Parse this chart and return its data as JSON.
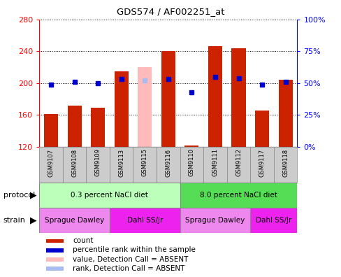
{
  "title": "GDS574 / AF002251_at",
  "samples": [
    "GSM9107",
    "GSM9108",
    "GSM9109",
    "GSM9113",
    "GSM9115",
    "GSM9116",
    "GSM9110",
    "GSM9111",
    "GSM9112",
    "GSM9117",
    "GSM9118"
  ],
  "counts": [
    161,
    172,
    169,
    215,
    null,
    240,
    122,
    246,
    244,
    166,
    204
  ],
  "counts_absent": [
    null,
    null,
    null,
    null,
    220,
    null,
    null,
    null,
    null,
    null,
    null
  ],
  "ranks": [
    49,
    51,
    50,
    53,
    null,
    53,
    43,
    55,
    54,
    49,
    51
  ],
  "ranks_absent": [
    null,
    null,
    null,
    null,
    52,
    null,
    null,
    null,
    null,
    null,
    null
  ],
  "ylim_left": [
    120,
    280
  ],
  "ylim_right": [
    0,
    100
  ],
  "yticks_left": [
    120,
    160,
    200,
    240,
    280
  ],
  "yticks_right": [
    0,
    25,
    50,
    75,
    100
  ],
  "bar_color": "#cc2200",
  "bar_color_absent": "#ffbbbb",
  "dot_color": "#0000cc",
  "dot_color_absent": "#aabbee",
  "plot_bg": "#ffffff",
  "protocol_groups": [
    {
      "label": "0.3 percent NaCl diet",
      "start": 0,
      "end": 5,
      "color": "#bbffbb"
    },
    {
      "label": "8.0 percent NaCl diet",
      "start": 6,
      "end": 10,
      "color": "#55dd55"
    }
  ],
  "strain_groups": [
    {
      "label": "Sprague Dawley",
      "start": 0,
      "end": 2,
      "color": "#ee88ee"
    },
    {
      "label": "Dahl SS/Jr",
      "start": 3,
      "end": 5,
      "color": "#ee22ee"
    },
    {
      "label": "Sprague Dawley",
      "start": 6,
      "end": 8,
      "color": "#ee88ee"
    },
    {
      "label": "Dahl SS/Jr",
      "start": 9,
      "end": 10,
      "color": "#ee22ee"
    }
  ],
  "legend_items": [
    {
      "label": "count",
      "color": "#cc2200"
    },
    {
      "label": "percentile rank within the sample",
      "color": "#0000cc"
    },
    {
      "label": "value, Detection Call = ABSENT",
      "color": "#ffbbbb"
    },
    {
      "label": "rank, Detection Call = ABSENT",
      "color": "#aabbee"
    }
  ],
  "tick_label_bg": "#cccccc",
  "label_area_color": "#cccccc"
}
